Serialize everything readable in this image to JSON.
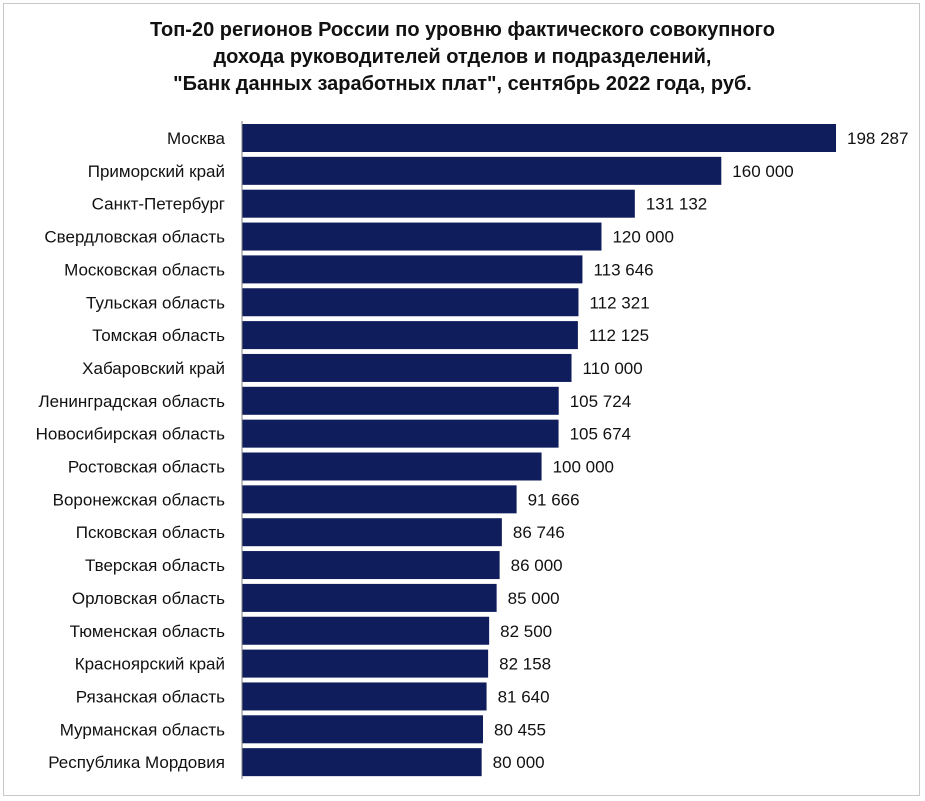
{
  "chart_data": {
    "type": "bar",
    "orientation": "horizontal",
    "title_lines": [
      "Топ-20 регионов России по уровню фактического совокупного",
      "дохода руководителей отделов и подразделений,",
      "\"Банк данных заработных плат\", сентябрь 2022 года, руб."
    ],
    "categories": [
      "Москва",
      "Приморский край",
      "Санкт-Петербург",
      "Свердловская область",
      "Московская область",
      "Тульская область",
      "Томская область",
      "Хабаровский край",
      "Ленинградская область",
      "Новосибирская область",
      "Ростовская область",
      "Воронежская область",
      "Псковская область",
      "Тверская область",
      "Орловская область",
      "Тюменская область",
      "Красноярский край",
      "Рязанская область",
      "Мурманская область",
      "Республика Мордовия"
    ],
    "values": [
      198287,
      160000,
      131132,
      120000,
      113646,
      112321,
      112125,
      110000,
      105724,
      105674,
      100000,
      91666,
      86746,
      86000,
      85000,
      82500,
      82158,
      81640,
      80455,
      80000
    ],
    "value_labels": [
      "198 287",
      "160 000",
      "131 132",
      "120 000",
      "113 646",
      "112 321",
      "112 125",
      "110 000",
      "105 724",
      "105 674",
      "100 000",
      "91 666",
      "86 746",
      "86 000",
      "85 000",
      "82 500",
      "82 158",
      "81 640",
      "80 455",
      "80 000"
    ],
    "bar_color": "#0f1d5c",
    "grid": false,
    "legend": "none",
    "xlim": [
      0,
      198287
    ]
  }
}
